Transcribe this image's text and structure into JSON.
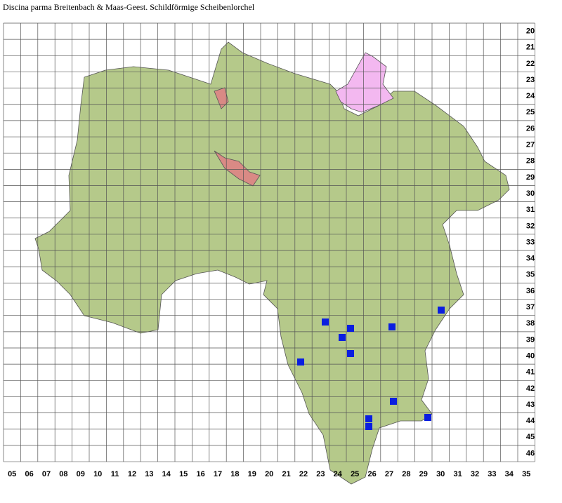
{
  "title": "Discina parma Breitenbach & Maas-Geest. Schildförmige Scheibenlorchel",
  "row_labels": [
    "20",
    "21",
    "22",
    "23",
    "24",
    "25",
    "26",
    "27",
    "28",
    "29",
    "30",
    "31",
    "32",
    "33",
    "34",
    "35",
    "36",
    "37",
    "38",
    "39",
    "40",
    "41",
    "42",
    "43",
    "44",
    "45",
    "46"
  ],
  "column_labels": [
    "05",
    "06",
    "07",
    "08",
    "09",
    "10",
    "11",
    "12",
    "13",
    "14",
    "15",
    "16",
    "17",
    "18",
    "19",
    "20",
    "21",
    "22",
    "23",
    "24",
    "25",
    "26",
    "27",
    "28",
    "29",
    "30",
    "31",
    "32",
    "33",
    "34",
    "35"
  ]
}
